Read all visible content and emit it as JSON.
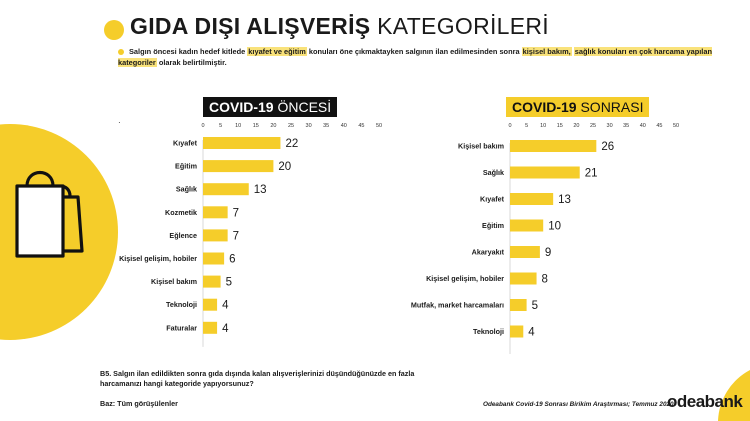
{
  "header": {
    "title_bold": "GIDA DIŞI ALIŞVERİŞ",
    "title_light": "KATEGORİLERİ",
    "intro_parts": [
      {
        "text": "Salgın öncesi kadın hedef kitlede ",
        "hl": false
      },
      {
        "text": "kıyafet ve eğitim",
        "hl": true
      },
      {
        "text": " konuları öne çıkmaktayken salgının ilan edilmesinden sonra ",
        "hl": false
      },
      {
        "text": "kişisel bakım,",
        "hl": true
      },
      {
        "text": " ",
        "hl": false
      },
      {
        "text": "sağlık konuları en çok harcama yapılan kategoriler",
        "hl": true
      },
      {
        "text": " olarak belirtilmiştir.",
        "hl": false
      }
    ]
  },
  "panels": {
    "before_bold": "COVID-19",
    "before_light": "ÖNCESİ",
    "after_bold": "COVID-19",
    "after_light": "SONRASI"
  },
  "colors": {
    "accent": "#f5cd2a",
    "dark": "#111111"
  },
  "chart_data": [
    {
      "type": "bar",
      "orientation": "horizontal",
      "title": "COVID-19 ÖNCESİ",
      "categories": [
        "Kıyafet",
        "Eğitim",
        "Sağlık",
        "Kozmetik",
        "Eğlence",
        "Kişisel gelişim, hobiler",
        "Kişisel bakım",
        "Teknoloji",
        "Faturalar"
      ],
      "values": [
        22,
        20,
        13,
        7,
        7,
        6,
        5,
        4,
        4
      ],
      "xlim": [
        0,
        50
      ],
      "ticks": [
        0,
        5,
        10,
        15,
        20,
        25,
        30,
        35,
        40,
        45,
        50
      ],
      "color": "#f5cd2a"
    },
    {
      "type": "bar",
      "orientation": "horizontal",
      "title": "COVID-19 SONRASI",
      "categories": [
        "Kişisel bakım",
        "Sağlık",
        "Kıyafet",
        "Eğitim",
        "Akaryakıt",
        "Kişisel gelişim, hobiler",
        "Mutfak, market harcamaları",
        "Teknoloji"
      ],
      "values": [
        26,
        21,
        13,
        10,
        9,
        8,
        5,
        4
      ],
      "xlim": [
        0,
        50
      ],
      "ticks": [
        0,
        5,
        10,
        15,
        20,
        25,
        30,
        35,
        40,
        45,
        50
      ],
      "color": "#f5cd2a"
    }
  ],
  "footer": {
    "question": "B5. Salgın ilan edildikten sonra gıda dışında kalan alışverişlerinizi düşündüğünüzde en fazla harcamanızı hangi kategoride yapıyorsunuz?",
    "base": "Baz: Tüm görüşülenler",
    "source": "Odeabank Covid-19 Sonrası Birikim Araştırması; Temmuz 2020",
    "brand": "odeabank"
  },
  "icons": {
    "shopping_bags": "shopping-bags-icon",
    "decor": "yellow-circle-decoration"
  }
}
